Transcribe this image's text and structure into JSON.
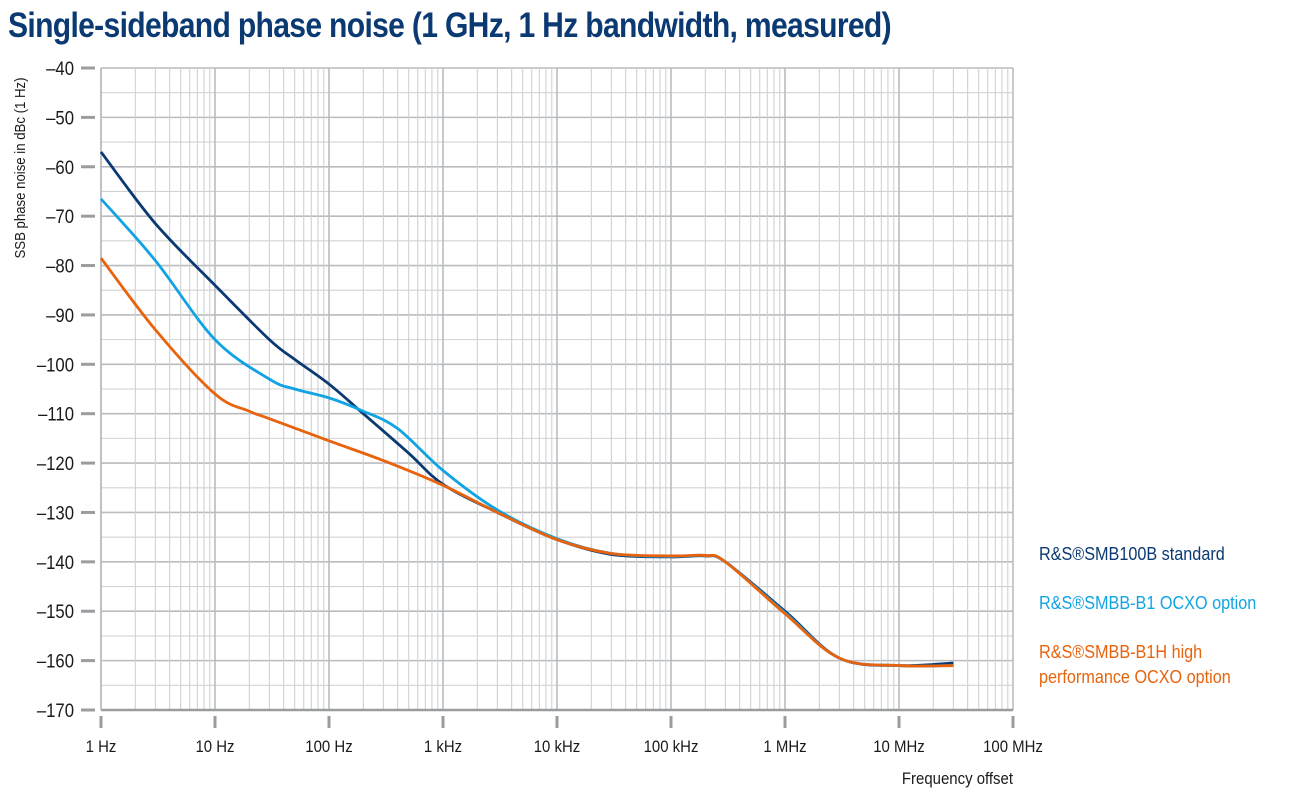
{
  "chart_data": {
    "type": "line",
    "title": "Single-sideband phase noise (1 GHz, 1 Hz bandwidth, measured)",
    "xlabel": "Frequency offset",
    "ylabel": "SSB phase noise in dBc (1 Hz)",
    "xscale": "log",
    "xlim_hz": [
      1,
      100000000
    ],
    "ylim": [
      -170,
      -40
    ],
    "grid": true,
    "legend_position": "right",
    "x_ticks": [
      "1 Hz",
      "10 Hz",
      "100 Hz",
      "1 kHz",
      "10 kHz",
      "100 kHz",
      "1 MHz",
      "10 MHz",
      "100 MHz"
    ],
    "y_ticks": [
      "–40",
      "–50",
      "–60",
      "–70",
      "–80",
      "–90",
      "–100",
      "–110",
      "–120",
      "–130",
      "–140",
      "–150",
      "–160",
      "–170"
    ],
    "y_tick_values": [
      -40,
      -50,
      -60,
      -70,
      -80,
      -90,
      -100,
      -110,
      -120,
      -130,
      -140,
      -150,
      -160,
      -170
    ],
    "series": [
      {
        "name": "R&S®SMB100B standard",
        "color": "#0b3a73",
        "x": [
          1,
          3,
          10,
          30,
          50,
          100,
          200,
          500,
          1000,
          3000,
          10000,
          30000,
          100000,
          200000,
          300000,
          1000000,
          3000000,
          10000000,
          30000000
        ],
        "y": [
          -57,
          -71.5,
          -84,
          -95,
          -99,
          -104,
          -110,
          -118,
          -124.3,
          -130,
          -135.5,
          -138.5,
          -139,
          -138.8,
          -140,
          -150,
          -159.5,
          -161,
          -160.5
        ]
      },
      {
        "name": "R&S®SMBB-B1 OCXO option",
        "color": "#12a3e3",
        "x": [
          1,
          3,
          10,
          30,
          50,
          100,
          200,
          400,
          1000,
          3000,
          10000,
          30000,
          100000,
          200000,
          300000,
          1000000,
          3000000,
          10000000,
          30000000
        ],
        "y": [
          -66.5,
          -79,
          -95,
          -103,
          -105,
          -106.8,
          -109.5,
          -113,
          -121.5,
          -129.5,
          -135.3,
          -138.3,
          -138.9,
          -138.7,
          -140,
          -150.3,
          -159.5,
          -161,
          -161
        ]
      },
      {
        "name": "R&S®SMBB-B1H high performance OCXO option",
        "color": "#e8630e",
        "x": [
          1,
          3,
          10,
          20,
          30,
          100,
          300,
          1000,
          3000,
          10000,
          30000,
          100000,
          200000,
          300000,
          1000000,
          3000000,
          10000000,
          30000000
        ],
        "y": [
          -78.5,
          -93,
          -106,
          -109.5,
          -111,
          -115.5,
          -119.5,
          -124.5,
          -130,
          -135.5,
          -138.3,
          -138.8,
          -138.7,
          -140,
          -150.5,
          -159.5,
          -161,
          -161
        ]
      }
    ],
    "legend_lines": [
      [
        "R&S®SMB100B standard"
      ],
      [
        "R&S®SMBB-B1 OCXO option"
      ],
      [
        "R&S®SMBB-B1H high",
        "performance OCXO option"
      ]
    ]
  }
}
